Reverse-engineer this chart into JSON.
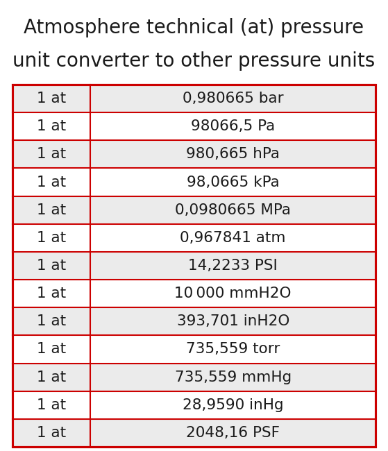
{
  "title_line1": "Atmosphere technical (at) pressure",
  "title_line2": "unit converter to other pressure units",
  "title_fontsize": 20,
  "rows": [
    [
      "1 at",
      "0,980665 bar"
    ],
    [
      "1 at",
      "98066,5 Pa"
    ],
    [
      "1 at",
      "980,665 hPa"
    ],
    [
      "1 at",
      "98,0665 kPa"
    ],
    [
      "1 at",
      "0,0980665 MPa"
    ],
    [
      "1 at",
      "0,967841 atm"
    ],
    [
      "1 at",
      "14,2233 PSI"
    ],
    [
      "1 at",
      "10 000 mmH2O"
    ],
    [
      "1 at",
      "393,701 inH2O"
    ],
    [
      "1 at",
      "735,559 torr"
    ],
    [
      "1 at",
      "735,559 mmHg"
    ],
    [
      "1 at",
      "28,9590 inHg"
    ],
    [
      "1 at",
      "2048,16 PSF"
    ]
  ],
  "row_colors": [
    "#ebebeb",
    "#ffffff",
    "#ebebeb",
    "#ffffff",
    "#ebebeb",
    "#ffffff",
    "#ebebeb",
    "#ffffff",
    "#ebebeb",
    "#ffffff",
    "#ebebeb",
    "#ffffff",
    "#ebebeb"
  ],
  "border_color": "#cc0000",
  "text_color": "#1a1a1a",
  "bg_color": "#ffffff",
  "table_font_size": 15.5,
  "col_split": 0.215
}
